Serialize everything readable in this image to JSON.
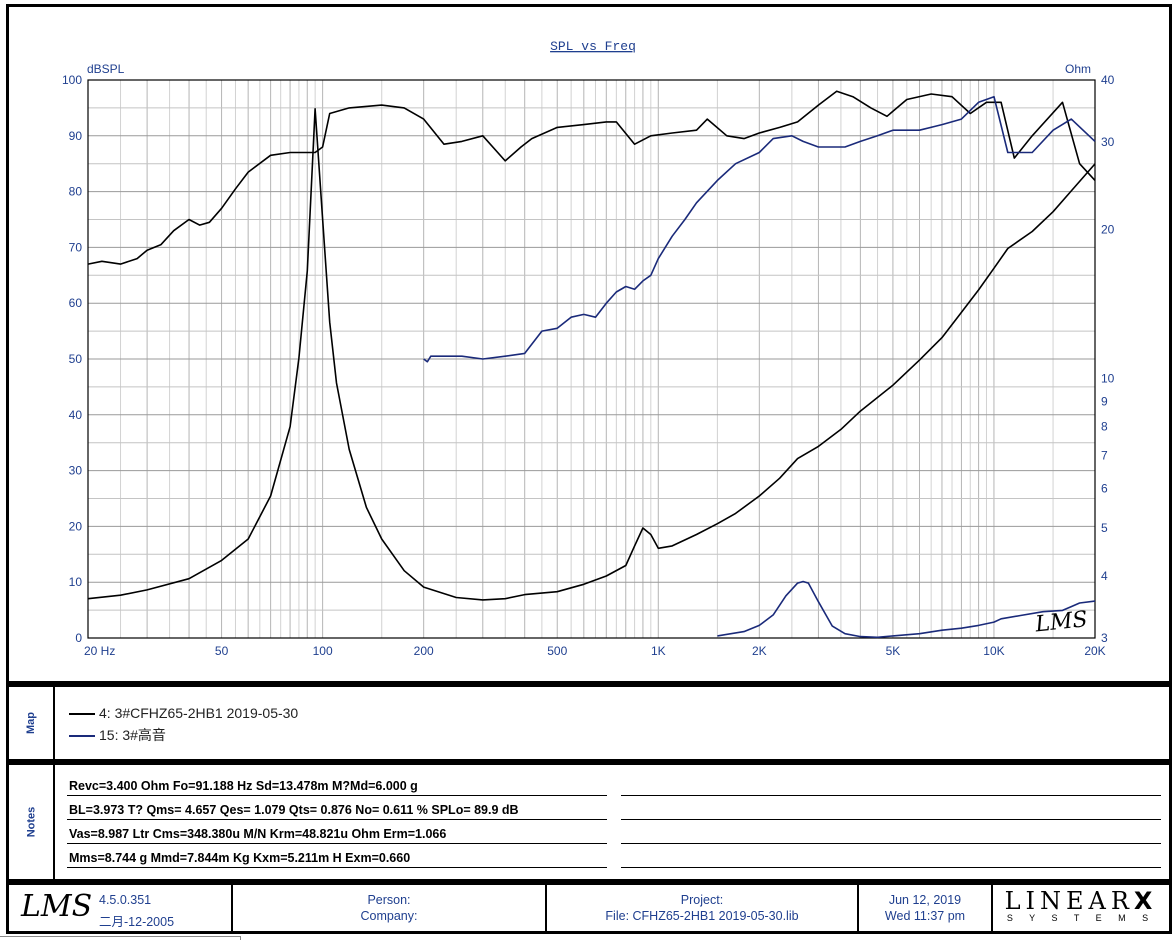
{
  "chart": {
    "title": "SPL vs Freq",
    "left_unit": "dBSPL",
    "right_unit": "Ohm",
    "y_left_ticks": [
      "100",
      "90",
      "80",
      "70",
      "60",
      "50",
      "40",
      "30",
      "20",
      "10",
      "0"
    ],
    "y_right_ticks": [
      "40",
      "30",
      "20",
      "10",
      "9",
      "8",
      "7",
      "6",
      "5",
      "4",
      "3"
    ],
    "x_ticks": [
      "20  Hz",
      "50",
      "100",
      "200",
      "500",
      "1K",
      "2K",
      "5K",
      "10K",
      "20K"
    ],
    "watermark": "LMS"
  },
  "chart_data": {
    "type": "line",
    "title": "SPL vs Freq",
    "xlabel": "Hz",
    "ylabel_left": "dBSPL",
    "ylabel_right": "Ohm",
    "xscale": "log",
    "xlim": [
      20,
      20000
    ],
    "ylim_left": [
      0,
      100
    ],
    "ylim_right": [
      3,
      40
    ],
    "yscale_right": "log",
    "grid": true,
    "series": [
      {
        "name": "4: 3#CFHZ65-2HB1 2019-05-30",
        "axis": "left",
        "kind": "SPL",
        "color": "#000000",
        "x": [
          20,
          22,
          25,
          28,
          30,
          33,
          36,
          40,
          43,
          46,
          50,
          55,
          60,
          70,
          80,
          90,
          95,
          100,
          105,
          120,
          150,
          175,
          200,
          230,
          260,
          300,
          350,
          390,
          420,
          500,
          600,
          700,
          750,
          850,
          950,
          1100,
          1300,
          1400,
          1600,
          1800,
          2000,
          2300,
          2600,
          3000,
          3400,
          3800,
          4300,
          4800,
          5500,
          6500,
          7500,
          8500,
          9500,
          10500,
          11500,
          13000,
          16000,
          18000,
          20000
        ],
        "y": [
          67,
          67.5,
          67,
          68,
          69.5,
          70.5,
          73,
          75,
          74,
          74.5,
          77,
          80.5,
          83.5,
          86.5,
          87,
          87,
          87,
          88,
          94,
          95,
          95.5,
          95,
          93,
          88.5,
          89,
          90,
          85.5,
          88,
          89.5,
          91.5,
          92,
          92.5,
          92.5,
          88.5,
          90,
          90.5,
          91,
          93,
          90,
          89.5,
          90.5,
          91.5,
          92.5,
          95.5,
          98,
          97,
          95,
          93.5,
          96.5,
          97.5,
          97,
          94,
          96,
          96,
          86,
          90,
          96,
          85,
          82
        ]
      },
      {
        "name": "4: 3#CFHZ65-2HB1 2019-05-30",
        "axis": "right",
        "kind": "Impedance",
        "color": "#000000",
        "x": [
          20,
          25,
          30,
          40,
          50,
          60,
          70,
          80,
          85,
          90,
          95,
          100,
          105,
          110,
          120,
          135,
          150,
          175,
          200,
          250,
          300,
          350,
          400,
          500,
          600,
          700,
          800,
          850,
          900,
          950,
          1000,
          1100,
          1300,
          1500,
          1700,
          2000,
          2300,
          2600,
          3000,
          3500,
          4000,
          5000,
          6000,
          7000,
          8000,
          9000,
          10000,
          11000,
          13000,
          15000,
          17000,
          20000
        ],
        "x_note": "frequency in Hz",
        "y": [
          3.6,
          3.66,
          3.75,
          3.95,
          4.3,
          4.75,
          5.8,
          8,
          11,
          16.5,
          35,
          21,
          13,
          9.8,
          7.2,
          5.5,
          4.75,
          4.1,
          3.8,
          3.62,
          3.58,
          3.6,
          3.67,
          3.72,
          3.85,
          4.0,
          4.2,
          4.6,
          5.0,
          4.85,
          4.55,
          4.6,
          4.85,
          5.1,
          5.35,
          5.8,
          6.3,
          6.9,
          7.3,
          7.9,
          8.6,
          9.7,
          10.9,
          12.1,
          13.6,
          15.1,
          16.7,
          18.3,
          19.8,
          21.7,
          23.9,
          27.1
        ]
      },
      {
        "name": "15: 3#高音",
        "axis": "left",
        "kind": "SPL",
        "color": "#1a2a7a",
        "x": [
          200,
          205,
          210,
          230,
          260,
          300,
          350,
          400,
          450,
          500,
          550,
          600,
          650,
          700,
          750,
          800,
          850,
          900,
          950,
          1000,
          1100,
          1200,
          1300,
          1500,
          1700,
          2000,
          2200,
          2500,
          2700,
          3000,
          3300,
          3600,
          4000,
          4500,
          5000,
          6000,
          7000,
          8000,
          9000,
          10000,
          11000,
          13000,
          15000,
          17000,
          20000
        ],
        "y": [
          50,
          49.5,
          50.5,
          50.5,
          50.5,
          50,
          50.5,
          51,
          55,
          55.5,
          57.5,
          58,
          57.5,
          60,
          62,
          63,
          62.5,
          64,
          65,
          68,
          72,
          75,
          78,
          82,
          85,
          87,
          89.5,
          90,
          89,
          88,
          88,
          88,
          89,
          90,
          91,
          91,
          92,
          93,
          96,
          97,
          87,
          87,
          91,
          93,
          89
        ]
      },
      {
        "name": "15: 3#高音",
        "axis": "right",
        "kind": "Impedance",
        "color": "#1a2a7a",
        "x": [
          1500,
          1800,
          2000,
          2200,
          2400,
          2600,
          2700,
          2800,
          3000,
          3300,
          3600,
          4000,
          4500,
          5000,
          6000,
          7000,
          8000,
          9000,
          10000,
          10500,
          12000,
          14000,
          16000,
          17000,
          18000,
          20000
        ],
        "y": [
          3.03,
          3.09,
          3.18,
          3.34,
          3.65,
          3.87,
          3.9,
          3.87,
          3.55,
          3.17,
          3.06,
          3.02,
          3.01,
          3.03,
          3.06,
          3.11,
          3.14,
          3.18,
          3.23,
          3.28,
          3.33,
          3.39,
          3.41,
          3.47,
          3.53,
          3.56
        ]
      }
    ]
  },
  "map": {
    "label": "Map",
    "items": [
      {
        "text": "4: 3#CFHZ65-2HB1 2019-05-30",
        "color": "#000000"
      },
      {
        "text": "15: 3#高音",
        "color": "#1a2a7a"
      }
    ]
  },
  "notes": {
    "label": "Notes",
    "lines": [
      "Revc=3.400 Ohm  Fo=91.188 Hz  Sd=13.478m M?Md=6.000 g",
      "BL=3.973 T?  Qms= 4.657  Qes= 1.079  Qts= 0.876  No= 0.611 %  SPLo= 89.9 dB",
      "Vas=8.987 Ltr  Cms=348.380u M/N  Krm=48.821u Ohm  Erm=1.066",
      "Mms=8.744 g  Mmd=7.844m Kg  Kxm=5.211m H  Exm=0.660"
    ]
  },
  "footer": {
    "logo": "LMS",
    "version": "4.5.0.351",
    "version_date": "二月-12-2005",
    "person_label": "Person:",
    "company_label": "Company:",
    "project_label": "Project:",
    "file_label": "File: CFHZ65-2HB1 2019-05-30.lib",
    "date": "Jun 12, 2019",
    "time": "Wed 11:37 pm",
    "brand": "LINEAR",
    "brand_x": "X",
    "brand_sub": "S Y S T E M S"
  }
}
